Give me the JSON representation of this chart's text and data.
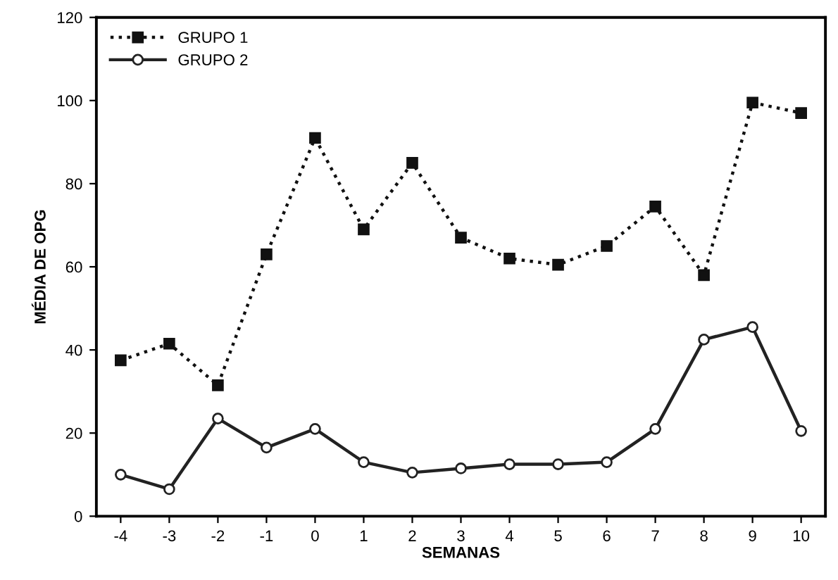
{
  "chart_data": {
    "type": "line",
    "xlabel": "SEMANAS",
    "ylabel": "MÉDIA DE OPG",
    "x": [
      -4,
      -3,
      -2,
      -1,
      0,
      1,
      2,
      3,
      4,
      5,
      6,
      7,
      8,
      9,
      10
    ],
    "series": [
      {
        "name": "GRUPO 1",
        "color": "#111111",
        "line_style": "dotted",
        "marker": "square",
        "values": [
          37.5,
          41.5,
          31.5,
          63,
          91,
          69,
          85,
          67,
          62,
          60.5,
          65,
          74.5,
          58,
          99.5,
          97
        ]
      },
      {
        "name": "GRUPO 2",
        "color": "#222222",
        "line_style": "solid",
        "marker": "circle",
        "values": [
          10,
          6.5,
          23.5,
          16.5,
          21,
          13,
          10.5,
          11.5,
          12.5,
          12.5,
          13,
          21,
          42.5,
          45.5,
          20.5
        ]
      }
    ],
    "xlim": [
      -4.5,
      10.5
    ],
    "xticks": [
      -4,
      -3,
      -2,
      -1,
      0,
      1,
      2,
      3,
      4,
      5,
      6,
      7,
      8,
      9,
      10
    ],
    "ylim": [
      0,
      120
    ],
    "yticks": [
      0,
      20,
      40,
      60,
      80,
      100,
      120
    ],
    "grid": false,
    "legend": "top left"
  }
}
